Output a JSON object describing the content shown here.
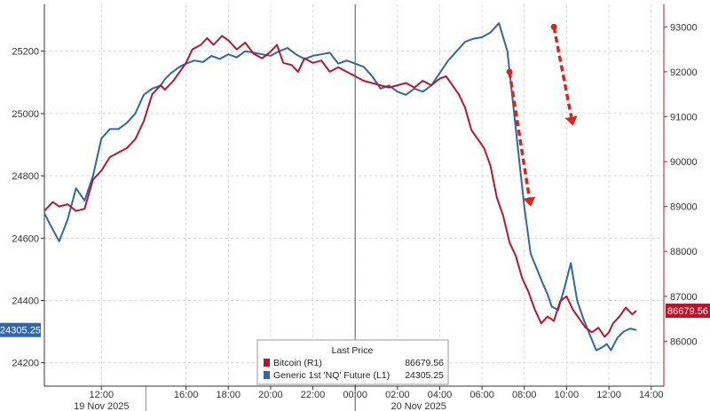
{
  "chart_data": {
    "type": "line",
    "title": "",
    "xlabel": "",
    "ylabel_left": "",
    "ylabel_right": "",
    "x_ticks": [
      "12:00",
      "16:00",
      "18:00",
      "20:00",
      "22:00",
      "00:00",
      "02:00",
      "04:00",
      "06:00",
      "08:00",
      "10:00",
      "12:00",
      "14:00"
    ],
    "date_labels": [
      "19 Nov 2025",
      "20 Nov 2025"
    ],
    "left_axis": {
      "ylim": [
        24125,
        25350
      ],
      "ticks": [
        "24200",
        "24400",
        "24600",
        "24800",
        "25000",
        "25200"
      ]
    },
    "right_axis": {
      "ylim": [
        85000,
        93500
      ],
      "ticks": [
        "86000",
        "87000",
        "88000",
        "89000",
        "90000",
        "91000",
        "92000",
        "93000"
      ]
    },
    "legend": {
      "title": "Last Price",
      "placement": "bottom-center",
      "entries": [
        {
          "name": "Bitcoin  (R1)",
          "value": "86679.56"
        },
        {
          "name": "Generic 1st 'NQ' Future  (L1)",
          "value": "24305.25"
        }
      ]
    },
    "last_value_tags": {
      "left": "24305.25",
      "right": "86679.56"
    },
    "colors": {
      "bitcoin": "#b5182e",
      "nq": "#2f67a8",
      "arrow": "#d9261c",
      "left_tag": "#2f67a8",
      "right_tag": "#b5182e"
    },
    "series": [
      {
        "name": "Generic 1st 'NQ' Future  (L1)",
        "axis": "left",
        "x": [
          9.3,
          9.6,
          10.0,
          10.4,
          10.8,
          11.2,
          11.6,
          12.0,
          12.4,
          12.8,
          13.2,
          13.6,
          14.0,
          14.4,
          14.8,
          15.0,
          15.3,
          15.7,
          16.0,
          16.4,
          16.8,
          17.2,
          17.6,
          18.0,
          18.4,
          18.8,
          19.2,
          19.6,
          20.0,
          20.4,
          20.8,
          21.2,
          21.6,
          22.0,
          22.4,
          22.8,
          23.2,
          23.6,
          24.0,
          24.4,
          24.8,
          25.2,
          25.6,
          26.0,
          26.4,
          26.8,
          27.2,
          27.6,
          28.0,
          28.4,
          28.8,
          29.2,
          29.6,
          30.0,
          30.4,
          30.8,
          31.2,
          31.6,
          32.0,
          32.3,
          32.6,
          32.9,
          33.1,
          33.3,
          33.6,
          33.9,
          34.2,
          34.5,
          34.8,
          35.1,
          35.4,
          35.7,
          35.9,
          36.1,
          36.4,
          36.7,
          37.0,
          37.3
        ],
        "values": [
          24680,
          24640,
          24590,
          24660,
          24760,
          24720,
          24800,
          24920,
          24950,
          24950,
          24970,
          25000,
          25060,
          25080,
          25090,
          25110,
          25130,
          25150,
          25160,
          25170,
          25165,
          25185,
          25175,
          25190,
          25180,
          25200,
          25195,
          25190,
          25185,
          25200,
          25210,
          25190,
          25175,
          25185,
          25190,
          25195,
          25160,
          25170,
          25160,
          25150,
          25120,
          25080,
          25090,
          25070,
          25060,
          25080,
          25070,
          25090,
          25130,
          25170,
          25200,
          25230,
          25240,
          25245,
          25260,
          25290,
          25200,
          24950,
          24700,
          24550,
          24500,
          24450,
          24420,
          24380,
          24370,
          24440,
          24520,
          24400,
          24340,
          24290,
          24240,
          24250,
          24260,
          24240,
          24280,
          24300,
          24310,
          24305
        ]
      },
      {
        "name": "Bitcoin  (R1)",
        "axis": "right",
        "x": [
          9.3,
          9.7,
          10.0,
          10.4,
          10.8,
          11.2,
          11.6,
          12.0,
          12.4,
          12.8,
          13.2,
          13.6,
          14.0,
          14.4,
          14.8,
          15.0,
          15.4,
          15.7,
          16.0,
          16.3,
          16.7,
          17.0,
          17.3,
          17.7,
          18.0,
          18.4,
          18.8,
          19.2,
          19.6,
          20.0,
          20.3,
          20.6,
          21.0,
          21.3,
          21.6,
          22.0,
          22.4,
          22.8,
          23.2,
          23.6,
          24.0,
          24.4,
          24.8,
          25.2,
          25.6,
          26.0,
          26.4,
          26.8,
          27.2,
          27.6,
          28.0,
          28.3,
          28.6,
          28.9,
          29.2,
          29.5,
          29.8,
          30.1,
          30.4,
          30.7,
          31.0,
          31.3,
          31.6,
          31.9,
          32.2,
          32.5,
          32.8,
          33.1,
          33.4,
          33.7,
          34.0,
          34.3,
          34.6,
          34.9,
          35.2,
          35.5,
          35.8,
          36.0,
          36.2,
          36.5,
          36.8,
          37.1,
          37.3
        ],
        "values": [
          88900,
          89100,
          89000,
          89050,
          88900,
          88950,
          89600,
          89800,
          90100,
          90200,
          90300,
          90500,
          90900,
          91500,
          91700,
          91600,
          91800,
          92000,
          92200,
          92500,
          92600,
          92750,
          92600,
          92800,
          92700,
          92500,
          92650,
          92400,
          92300,
          92450,
          92600,
          92200,
          92150,
          92000,
          92300,
          92200,
          92250,
          92000,
          92100,
          92000,
          91900,
          91800,
          91750,
          91700,
          91650,
          91700,
          91750,
          91650,
          91800,
          91700,
          91850,
          91900,
          91700,
          91500,
          91200,
          90700,
          90500,
          90300,
          89900,
          89200,
          88800,
          88200,
          87900,
          87400,
          87100,
          86700,
          86400,
          86550,
          86450,
          86900,
          87000,
          86700,
          86500,
          86300,
          86200,
          86300,
          86100,
          86200,
          86400,
          86550,
          86750,
          86600,
          86680
        ]
      }
    ],
    "x_range_hours": [
      9.3,
      38.6
    ],
    "x_tick_hours": [
      12,
      16,
      18,
      20,
      22,
      24,
      26,
      28,
      30,
      32,
      34,
      36,
      38
    ],
    "date_label_hours": [
      12,
      27
    ],
    "day_separator_hour": 24,
    "arrows": [
      {
        "axis": "right",
        "from": [
          31.3,
          92000
        ],
        "to": [
          32.3,
          89000
        ]
      },
      {
        "axis": "right",
        "from": [
          33.4,
          93000
        ],
        "to": [
          34.3,
          90800
        ]
      }
    ]
  }
}
